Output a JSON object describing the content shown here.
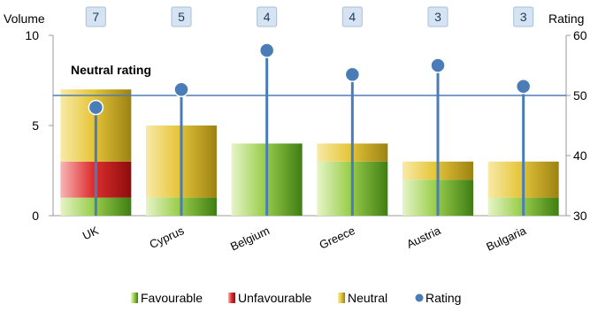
{
  "chart_data": {
    "type": "bar",
    "categories": [
      "UK",
      "Cyprus",
      "Belgium",
      "Greece",
      "Austria",
      "Bulgaria"
    ],
    "series": [
      {
        "name": "Favourable",
        "values": [
          1,
          1,
          4,
          3,
          2,
          1
        ]
      },
      {
        "name": "Unfavourable",
        "values": [
          2,
          0,
          0,
          0,
          0,
          0
        ]
      },
      {
        "name": "Neutral",
        "values": [
          4,
          4,
          0,
          1,
          1,
          2
        ]
      }
    ],
    "rating": {
      "name": "Rating",
      "values": [
        48,
        51,
        57.5,
        53.5,
        55,
        51.5
      ]
    },
    "volume_labels": [
      "7",
      "5",
      "4",
      "4",
      "3",
      "3"
    ],
    "left_axis": {
      "title": "Volume",
      "range": [
        0,
        10
      ],
      "ticks": [
        "0",
        "5",
        "10"
      ]
    },
    "right_axis": {
      "title": "Rating",
      "range": [
        30,
        60
      ],
      "ticks": [
        "30",
        "40",
        "50",
        "60"
      ]
    },
    "reference_line": {
      "label": "Neutral rating",
      "value": 50
    },
    "legend": {
      "position": "bottom"
    },
    "colors": {
      "favourable": "#7cb82f",
      "unfavourable": "#d42020",
      "neutral": "#e3c235",
      "rating": "#4a7db8",
      "reference": "#4a7db8"
    }
  }
}
